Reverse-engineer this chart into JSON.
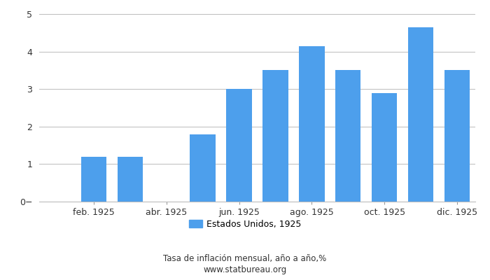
{
  "values": [
    null,
    1.2,
    1.2,
    null,
    1.8,
    3.0,
    3.5,
    4.15,
    3.5,
    2.9,
    4.65,
    3.5
  ],
  "bar_color": "#4d9fec",
  "ylim": [
    0,
    5
  ],
  "yticks": [
    0,
    1,
    2,
    3,
    4,
    5
  ],
  "legend_label": "Estados Unidos, 1925",
  "footnote_line1": "Tasa de inflación mensual, año a año,%",
  "footnote_line2": "www.statbureau.org",
  "xtick_positions": [
    1,
    3,
    5,
    7,
    9,
    11
  ],
  "xtick_labels": [
    "feb. 1925",
    "abr. 1925",
    "jun. 1925",
    "ago. 1925",
    "oct. 1925",
    "dic. 1925"
  ],
  "background_color": "#ffffff",
  "grid_color": "#bbbbbb",
  "n_slots": 12
}
